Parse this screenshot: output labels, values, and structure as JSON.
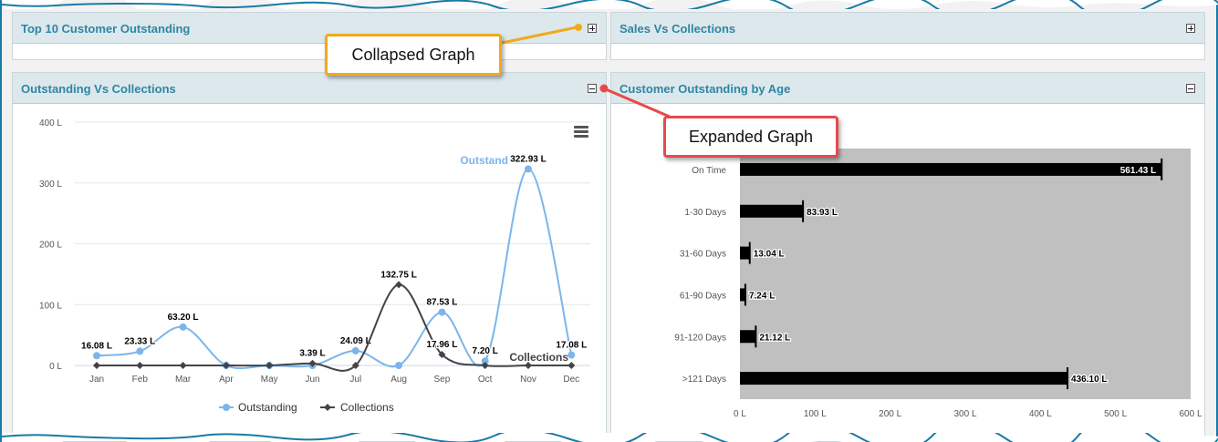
{
  "panels": {
    "top10": {
      "title": "Top 10 Customer Outstanding"
    },
    "sales_vs_collections": {
      "title": "Sales Vs Collections"
    },
    "outstanding_vs_collections": {
      "title": "Outstanding Vs Collections"
    },
    "customer_outstanding_by_age": {
      "title": "Customer Outstanding by Age"
    }
  },
  "callouts": {
    "collapsed": "Collapsed Graph",
    "expanded": "Expanded Graph"
  },
  "icons": {
    "expand": "plus-square-icon",
    "collapse": "minus-square-icon",
    "chart_menu": "hamburger-menu-icon"
  },
  "colors": {
    "panel_title": "#2d86a5",
    "outstanding_series": "#7cb5ec",
    "collections_series": "#434348",
    "age_bar": "#000000",
    "age_plot_bg": "#c0c0c0",
    "callout_collapsed_border": "#f2a91b",
    "callout_expanded_border": "#e84a4a"
  },
  "chart_data": [
    {
      "type": "line",
      "categories": [
        "Jan",
        "Feb",
        "Mar",
        "Apr",
        "May",
        "Jun",
        "Jul",
        "Aug",
        "Sep",
        "Oct",
        "Nov",
        "Dec"
      ],
      "series": [
        {
          "name": "Outstanding",
          "values": [
            16.08,
            23.33,
            63.2,
            0,
            0,
            0,
            24.09,
            0,
            87.53,
            7.2,
            322.93,
            17.08
          ],
          "labels": [
            "16.08 L",
            "23.33 L",
            "63.20 L",
            "",
            "",
            "",
            "24.09 L",
            "",
            "87.53 L",
            "7.20 L",
            "322.93 L",
            "17.08 L"
          ],
          "inline_label": "Outstand"
        },
        {
          "name": "Collections",
          "values": [
            0,
            0,
            0,
            0,
            0,
            3.39,
            0,
            132.75,
            17.96,
            0,
            0,
            0
          ],
          "labels": [
            "",
            "",
            "",
            "",
            "",
            "3.39 L",
            "",
            "132.75 L",
            "17.96 L",
            "",
            "",
            ""
          ],
          "inline_label": "Collections"
        }
      ],
      "yticks": [
        "0 L",
        "100 L",
        "200 L",
        "300 L",
        "400 L"
      ],
      "ylim": [
        0,
        400
      ],
      "grid": true,
      "legend": "bottom"
    },
    {
      "type": "bar",
      "orientation": "horizontal",
      "categories": [
        "On Time",
        "1-30 Days",
        "31-60 Days",
        "61-90 Days",
        "91-120 Days",
        ">121 Days"
      ],
      "values": [
        561.43,
        83.93,
        13.04,
        7.24,
        21.12,
        436.1
      ],
      "labels": [
        "561.43 L",
        "83.93 L",
        "13.04 L",
        "7.24 L",
        "21.12 L",
        "436.10 L"
      ],
      "xticks": [
        "0 L",
        "100 L",
        "200 L",
        "300 L",
        "400 L",
        "500 L",
        "600 L"
      ],
      "xlim": [
        0,
        600
      ]
    }
  ]
}
